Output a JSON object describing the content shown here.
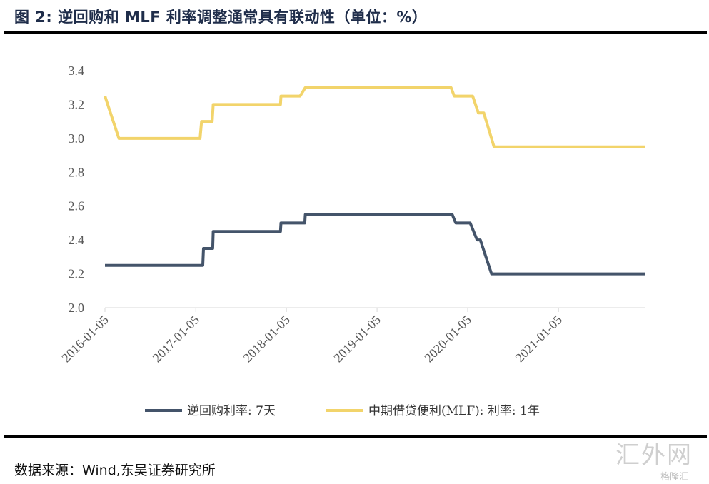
{
  "header": {
    "title": "图 2:  逆回购和 MLF 利率调整通常具有联动性（单位：%）"
  },
  "footer": {
    "source": "数据来源：Wind,东吴证券研究所"
  },
  "watermark": {
    "text": "汇外网",
    "sub": "格隆汇"
  },
  "chart_data": {
    "type": "line",
    "title": "逆回购和 MLF 利率调整通常具有联动性（单位：%）",
    "xlabel": "",
    "ylabel": "",
    "ylim": [
      2.0,
      3.4
    ],
    "yticks": [
      "2.0",
      "2.2",
      "2.4",
      "2.6",
      "2.8",
      "3.0",
      "3.2",
      "3.4"
    ],
    "xticks": [
      "2016-01-05",
      "2017-01-05",
      "2018-01-05",
      "2019-01-05",
      "2020-01-05",
      "2021-01-05"
    ],
    "xrange": [
      "2016-01-05",
      "2021-12-31"
    ],
    "grid": false,
    "legend": "bottom",
    "series": [
      {
        "name": "逆回购利率: 7天",
        "color": "#44546a",
        "points": [
          [
            "2016-01-05",
            2.25
          ],
          [
            "2017-02-02",
            2.25
          ],
          [
            "2017-02-05",
            2.35
          ],
          [
            "2017-03-14",
            2.35
          ],
          [
            "2017-03-16",
            2.45
          ],
          [
            "2017-12-12",
            2.45
          ],
          [
            "2017-12-14",
            2.5
          ],
          [
            "2018-03-20",
            2.5
          ],
          [
            "2018-03-22",
            2.55
          ],
          [
            "2019-11-04",
            2.55
          ],
          [
            "2019-11-18",
            2.5
          ],
          [
            "2020-01-15",
            2.5
          ],
          [
            "2020-02-12",
            2.4
          ],
          [
            "2020-02-25",
            2.4
          ],
          [
            "2020-04-10",
            2.2
          ],
          [
            "2021-12-20",
            2.2
          ]
        ]
      },
      {
        "name": "中期借贷便利(MLF): 利率: 1年",
        "color": "#f2d46b",
        "points": [
          [
            "2016-01-05",
            3.25
          ],
          [
            "2016-03-01",
            3.0
          ],
          [
            "2017-01-22",
            3.0
          ],
          [
            "2017-01-28",
            3.1
          ],
          [
            "2017-03-12",
            3.1
          ],
          [
            "2017-03-16",
            3.2
          ],
          [
            "2017-12-12",
            3.2
          ],
          [
            "2017-12-14",
            3.25
          ],
          [
            "2018-03-01",
            3.25
          ],
          [
            "2018-03-22",
            3.3
          ],
          [
            "2019-10-30",
            3.3
          ],
          [
            "2019-11-12",
            3.25
          ],
          [
            "2020-01-25",
            3.25
          ],
          [
            "2020-02-17",
            3.15
          ],
          [
            "2020-03-10",
            3.15
          ],
          [
            "2020-04-20",
            2.95
          ],
          [
            "2021-12-20",
            2.95
          ]
        ]
      }
    ]
  }
}
